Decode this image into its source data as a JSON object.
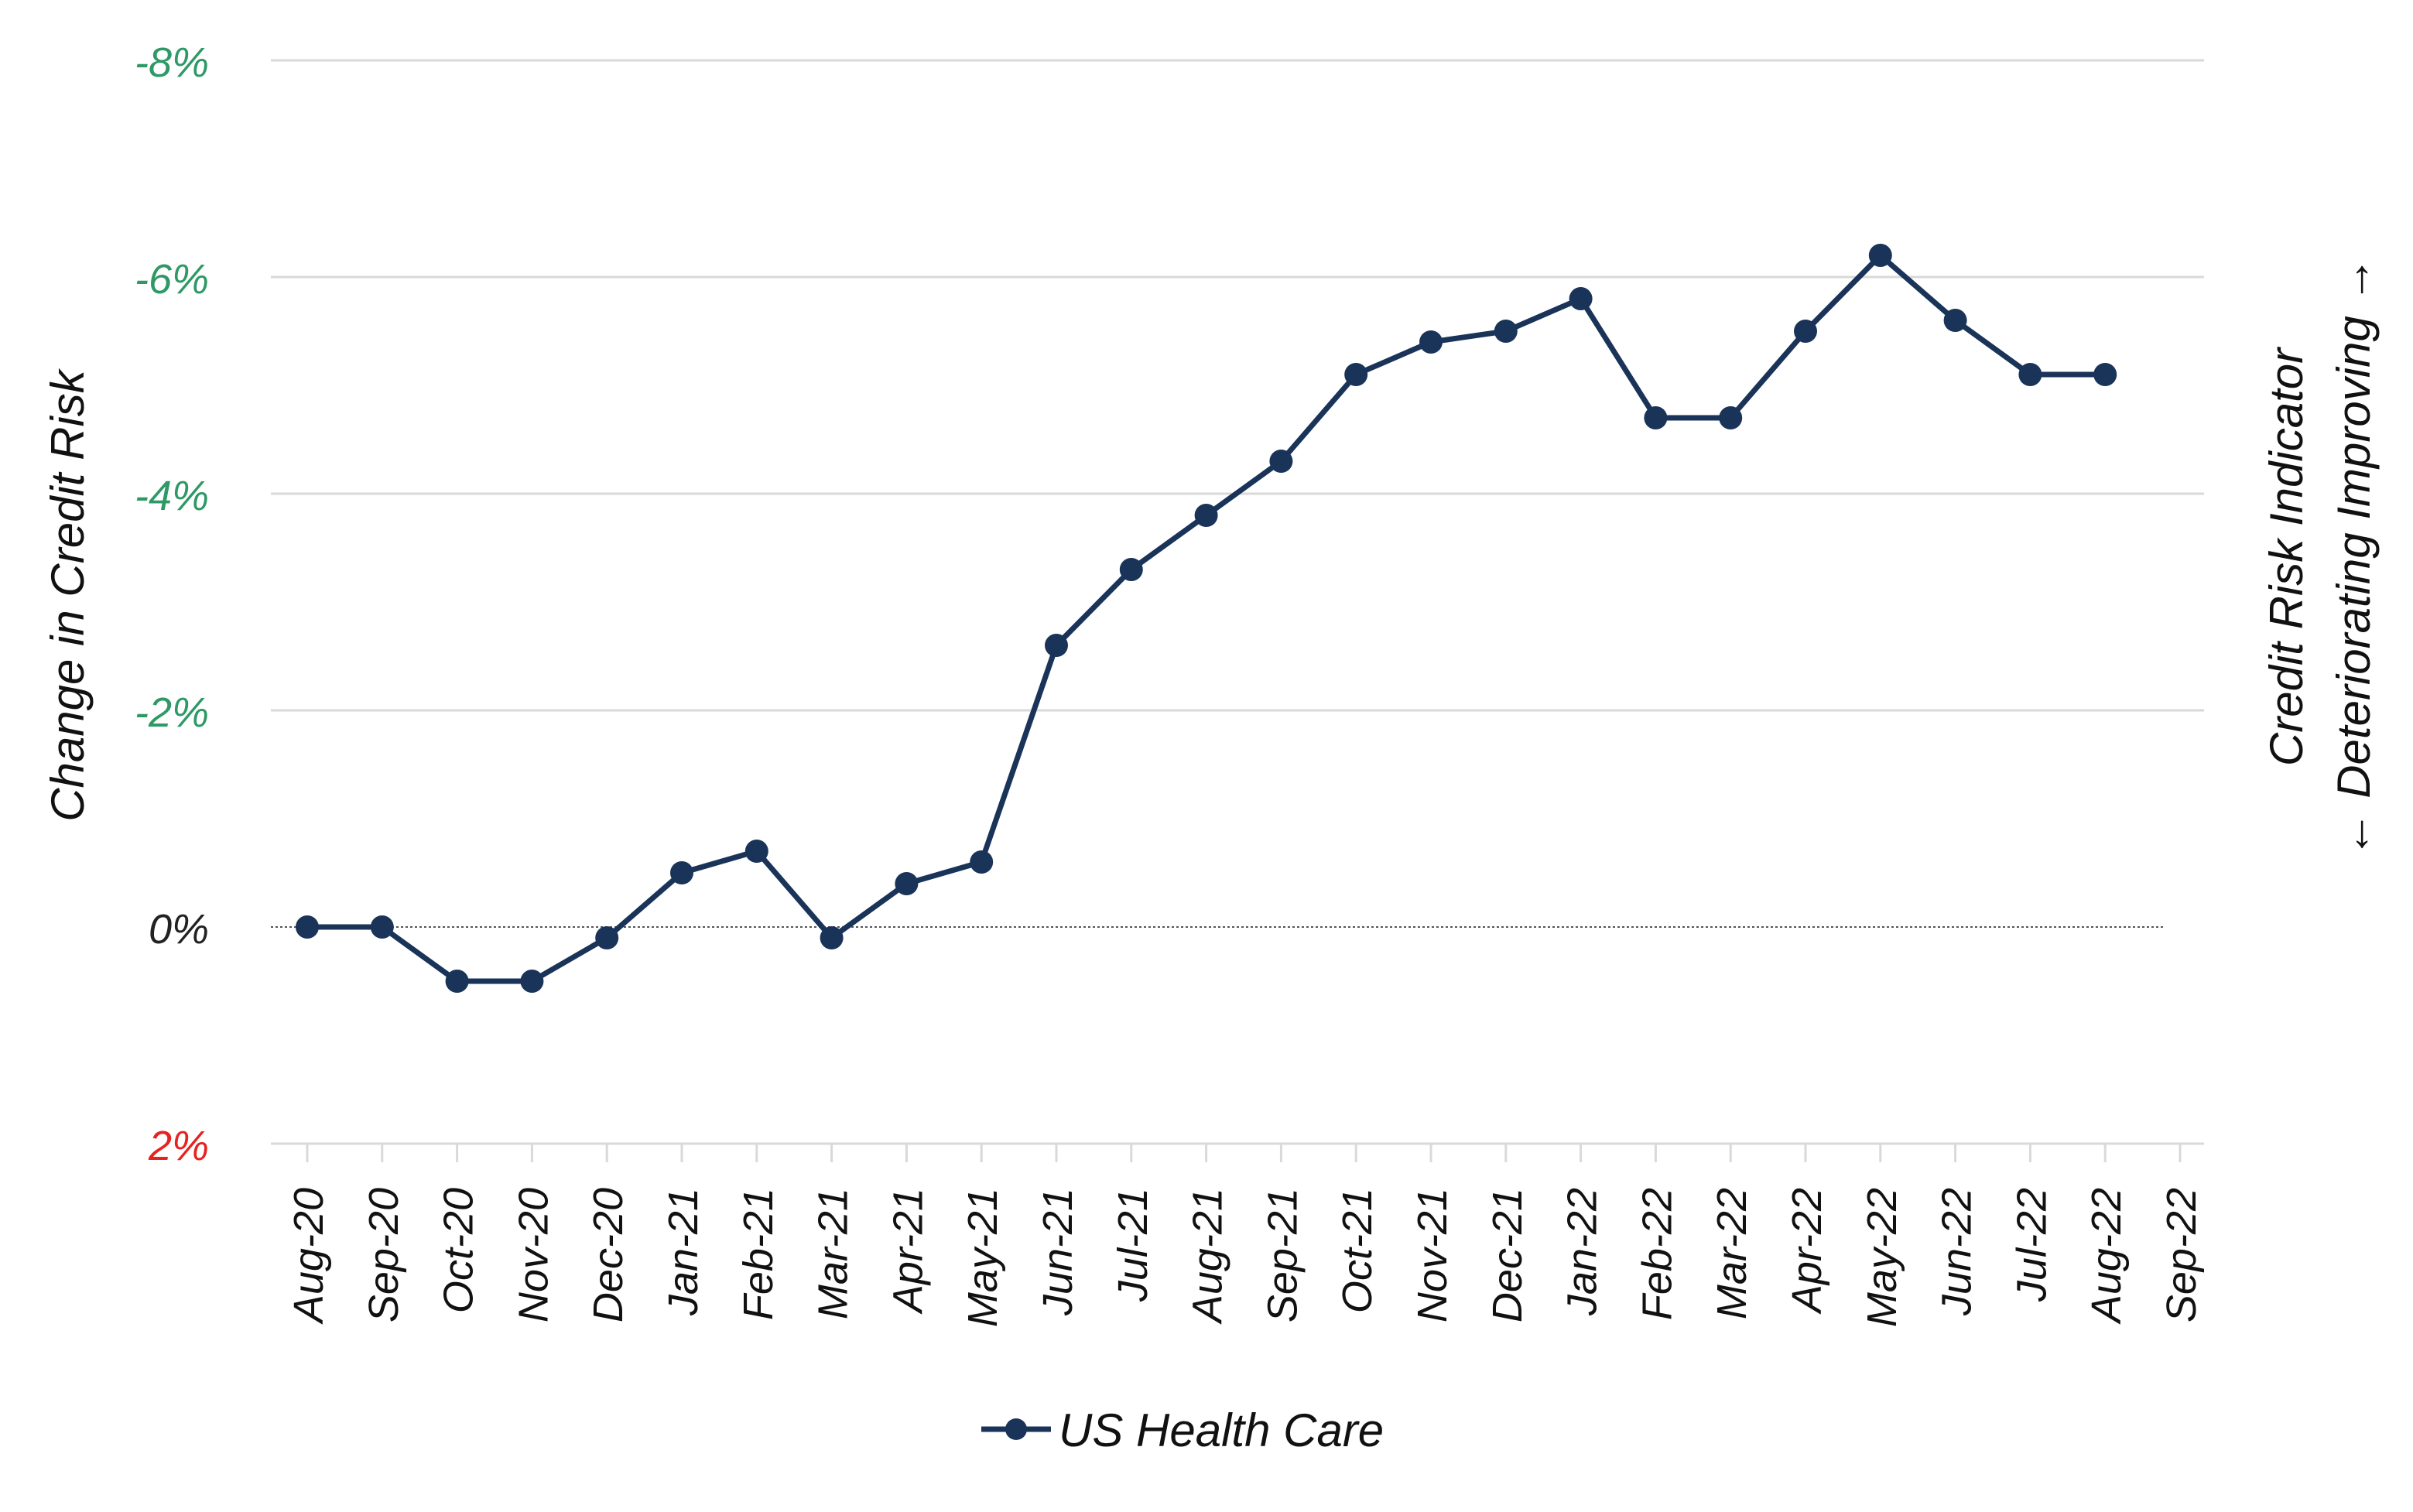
{
  "chart_data": {
    "type": "line",
    "title": "",
    "xlabel": "",
    "ylabel": "Change in Credit Risk",
    "secondary_label": {
      "line1": "Credit Risk Indicator",
      "line2": "← Deteriorating Improving →"
    },
    "y_axis": {
      "reversed": true,
      "ylim": [
        -8,
        2
      ],
      "ticks": [
        {
          "value": -8,
          "label": "-8%",
          "color": "#2e9966"
        },
        {
          "value": -6,
          "label": "-6%",
          "color": "#2e9966"
        },
        {
          "value": -4,
          "label": "-4%",
          "color": "#2e9966"
        },
        {
          "value": -2,
          "label": "-2%",
          "color": "#2e9966"
        },
        {
          "value": 0,
          "label": "0%",
          "color": "#222222"
        },
        {
          "value": 2,
          "label": "2%",
          "color": "#e8221f"
        }
      ],
      "grid": true
    },
    "categories": [
      "Aug-20",
      "Sep-20",
      "Oct-20",
      "Nov-20",
      "Dec-20",
      "Jan-21",
      "Feb-21",
      "Mar-21",
      "Apr-21",
      "May-21",
      "Jun-21",
      "Jul-21",
      "Aug-21",
      "Sep-21",
      "Oct-21",
      "Nov-21",
      "Dec-21",
      "Jan-22",
      "Feb-22",
      "Mar-22",
      "Apr-22",
      "May-22",
      "Jun-22",
      "Jul-22",
      "Aug-22",
      "Sep-22"
    ],
    "series": [
      {
        "name": "US Health Care",
        "color": "#1a3358",
        "values": [
          0,
          0,
          0.5,
          0.5,
          0.1,
          -0.5,
          -0.7,
          0.1,
          -0.4,
          -0.6,
          -2.6,
          -3.3,
          -3.8,
          -4.3,
          -5.1,
          -5.4,
          -5.5,
          -5.8,
          -4.7,
          -4.7,
          -5.5,
          -6.2,
          -5.6,
          -5.1,
          -5.1,
          null
        ]
      }
    ],
    "legend": {
      "position": "bottom-center"
    }
  }
}
